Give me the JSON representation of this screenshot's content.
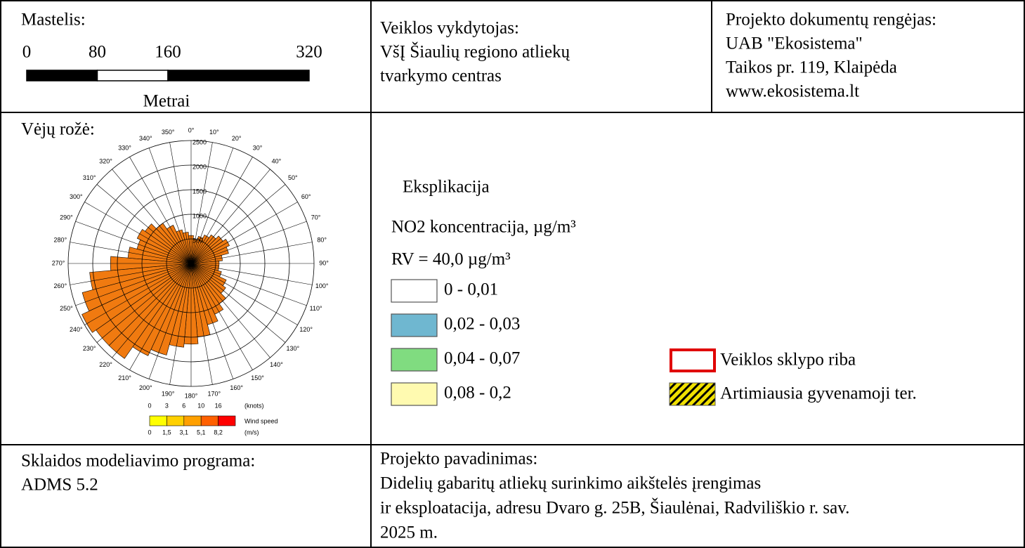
{
  "scale": {
    "title": "Mastelis:",
    "ticks": [
      0,
      80,
      160,
      320
    ],
    "unit": "Metrai"
  },
  "operator": {
    "label": "Veiklos vykdytojas:",
    "lines": [
      "VšĮ Šiaulių regiono atliekų",
      "tvarkymo centras"
    ]
  },
  "preparer": {
    "label": "Projekto dokumentų rengėjas:",
    "lines": [
      "UAB \"Ekosistema\"",
      "Taikos pr. 119, Klaipėda",
      "www.ekosistema.lt"
    ]
  },
  "wind_rose": {
    "title": "Vėjų rožė:",
    "directions": [
      {
        "value": 0,
        "label": "0°"
      },
      {
        "value": 10,
        "label": "10°"
      },
      {
        "value": 20,
        "label": "20°"
      },
      {
        "value": 30,
        "label": "30°"
      },
      {
        "value": 40,
        "label": "40°"
      },
      {
        "value": 50,
        "label": "50°"
      },
      {
        "value": 60,
        "label": "60°"
      },
      {
        "value": 70,
        "label": "70°"
      },
      {
        "value": 80,
        "label": "80°"
      },
      {
        "value": 90,
        "label": "90°"
      },
      {
        "value": 100,
        "label": "100°"
      },
      {
        "value": 110,
        "label": "110°"
      },
      {
        "value": 120,
        "label": "120°"
      },
      {
        "value": 130,
        "label": "130°"
      },
      {
        "value": 140,
        "label": "140°"
      },
      {
        "value": 150,
        "label": "150°"
      },
      {
        "value": 160,
        "label": "160°"
      },
      {
        "value": 170,
        "label": "170°"
      },
      {
        "value": 180,
        "label": "180°"
      },
      {
        "value": 190,
        "label": "190°"
      },
      {
        "value": 200,
        "label": "200°"
      },
      {
        "value": 210,
        "label": "210°"
      },
      {
        "value": 220,
        "label": "220°"
      },
      {
        "value": 230,
        "label": "230°"
      },
      {
        "value": 240,
        "label": "240°"
      },
      {
        "value": 250,
        "label": "250°"
      },
      {
        "value": 260,
        "label": "260°"
      },
      {
        "value": 270,
        "label": "270°"
      },
      {
        "value": 280,
        "label": "280°"
      },
      {
        "value": 290,
        "label": "290°"
      },
      {
        "value": 300,
        "label": "300°"
      },
      {
        "value": 310,
        "label": "310°"
      },
      {
        "value": 320,
        "label": "320°"
      },
      {
        "value": 330,
        "label": "330°"
      },
      {
        "value": 340,
        "label": "340°"
      },
      {
        "value": 350,
        "label": "350°"
      }
    ],
    "values": [
      570,
      500,
      570,
      640,
      710,
      790,
      860,
      790,
      640,
      570,
      570,
      640,
      790,
      860,
      1000,
      1140,
      1290,
      1500,
      1640,
      1710,
      1930,
      2070,
      2360,
      2360,
      2450,
      2290,
      2070,
      1640,
      1290,
      1140,
      1210,
      1140,
      1000,
      860,
      710,
      640
    ],
    "rings": [
      500,
      1000,
      1500,
      2000,
      2500
    ],
    "color": "#f07a10",
    "speed_legend": {
      "title": "Wind speed",
      "colors": [
        "#ffff00",
        "#ffd000",
        "#ffa000",
        "#ff6000",
        "#ff0000"
      ],
      "knots": [
        0,
        3,
        6,
        10,
        16
      ],
      "knots_unit": "(knots)",
      "ms": [
        0,
        {
          "value": 1.5,
          "label": "1,5"
        },
        {
          "value": 3.1,
          "label": "3,1"
        },
        {
          "value": 5.1,
          "label": "5,1"
        },
        {
          "value": 8.2,
          "label": "8,2"
        }
      ],
      "ms_unit": "(m/s)"
    }
  },
  "legend": {
    "title": "Eksplikacija",
    "pollutant": "NO2 koncentracija, µg/m³",
    "limit": "RV = 40,0 µg/m³",
    "classes": [
      {
        "label": "0 - 0,01",
        "color": "#ffffff"
      },
      {
        "label": "0,02 - 0,03",
        "color": "#6fb7d0"
      },
      {
        "label": "0,04 - 0,07",
        "color": "#80dc80"
      },
      {
        "label": "0,08 - 0,2",
        "color": "#fffab0"
      }
    ],
    "symbols": [
      {
        "label": "Veiklos sklypo riba",
        "color": "#e00000"
      },
      {
        "label": "Artimiausia gyvenamoji ter.",
        "color": "#f0e000"
      }
    ]
  },
  "software": {
    "label": "Sklaidos modeliavimo programa:",
    "value": "ADMS 5.2"
  },
  "project": {
    "label": "Projekto pavadinimas:",
    "lines": [
      "Didelių gabaritų atliekų surinkimo aikštelės įrengimas",
      "ir eksploatacija, adresu Dvaro g. 25B, Šiaulėnai, Radviliškio r. sav.",
      "2025 m."
    ]
  }
}
